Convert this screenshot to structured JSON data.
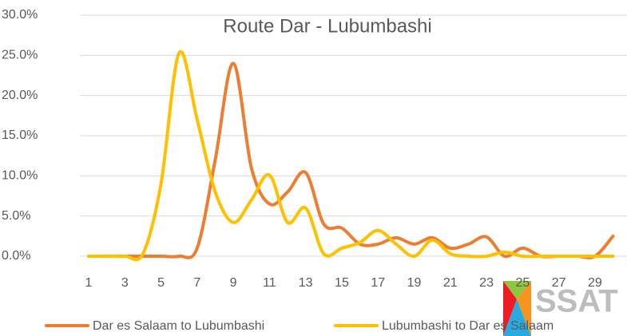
{
  "chart_data": {
    "type": "line",
    "title": "Route Dar - Lubumbashi",
    "categories": [
      1,
      null,
      3,
      null,
      5,
      null,
      7,
      null,
      9,
      null,
      11,
      null,
      13,
      null,
      15,
      null,
      17,
      null,
      19,
      null,
      21,
      null,
      23,
      null,
      25,
      null,
      27,
      null,
      29,
      null
    ],
    "series": [
      {
        "name": "Dar es Salaam to Lubumbashi",
        "color": "#ed7d31",
        "values": [
          0,
          0,
          0,
          0,
          0,
          0,
          1,
          12,
          24,
          11,
          6.5,
          8,
          10.4,
          4,
          3.5,
          1.5,
          1.5,
          2.3,
          1.5,
          2.3,
          1,
          1.5,
          2.4,
          0,
          1,
          0,
          0,
          0,
          0,
          2.5
        ]
      },
      {
        "name": "Lubumbashi to Dar es Salaam",
        "color": "#ffc000",
        "values": [
          0,
          0,
          0,
          0.3,
          9,
          25.3,
          17,
          8,
          4.2,
          7,
          10.1,
          4.2,
          6,
          0.3,
          1,
          1.7,
          3.2,
          1.5,
          0,
          2,
          0.3,
          0,
          0,
          0.5,
          0,
          0,
          0,
          0,
          0,
          0
        ]
      }
    ],
    "ylim": [
      0,
      30
    ],
    "yticks": [
      {
        "value": 0,
        "label": "0.0%"
      },
      {
        "value": 5,
        "label": "5.0%"
      },
      {
        "value": 10,
        "label": "10.0%"
      },
      {
        "value": 15,
        "label": "15.0%"
      },
      {
        "value": 20,
        "label": "20.0%"
      },
      {
        "value": 25,
        "label": "25.0%"
      },
      {
        "value": 30,
        "label": "30.0%"
      }
    ],
    "grid": true,
    "smooth": true,
    "legend": "bottom",
    "logo_text": "SSAT"
  }
}
